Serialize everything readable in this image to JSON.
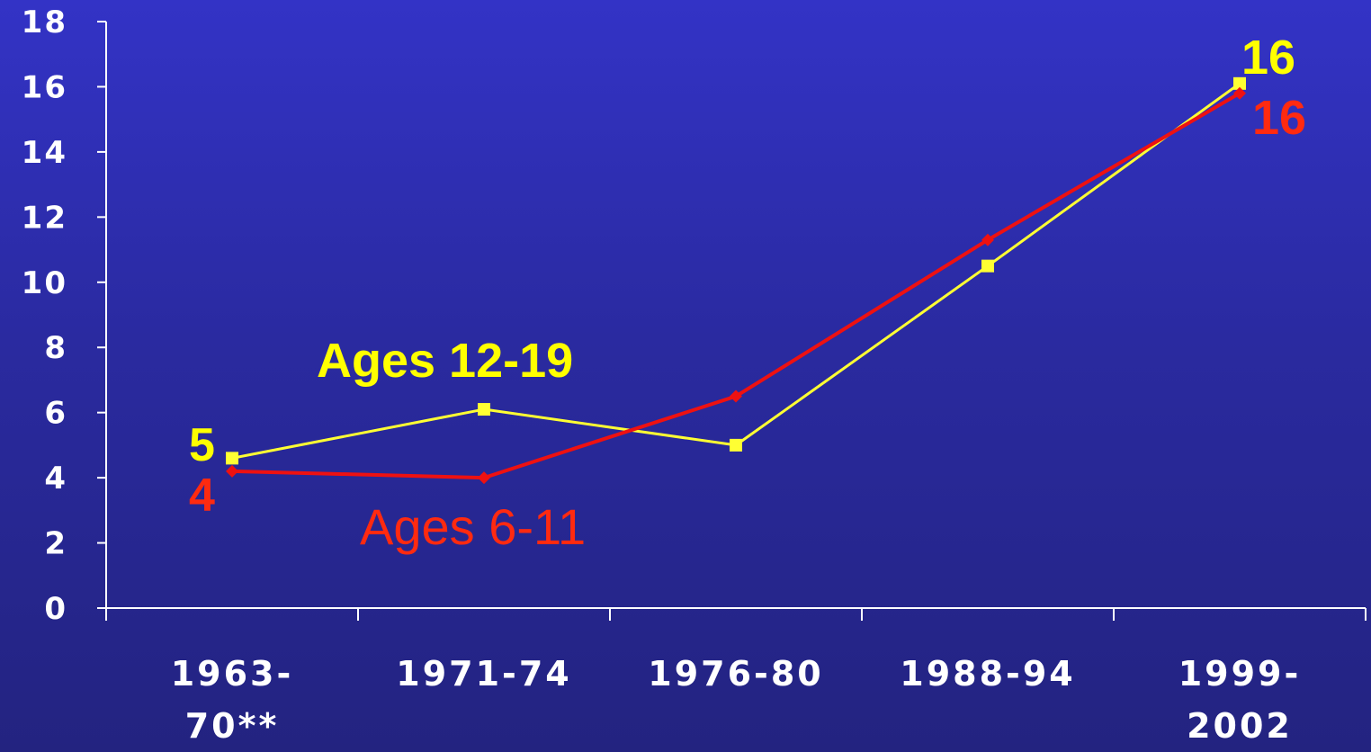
{
  "chart_data": {
    "type": "line",
    "categories": [
      "1963-70**",
      "1971-74",
      "1976-80",
      "1988-94",
      "1999-2002"
    ],
    "category_lines": [
      [
        "1963-",
        "70**"
      ],
      [
        "1971-74"
      ],
      [
        "1976-80"
      ],
      [
        "1988-94"
      ],
      [
        "1999-",
        "2002"
      ]
    ],
    "ylim": [
      0,
      18
    ],
    "yticks": [
      "0",
      "2",
      "4",
      "6",
      "8",
      "10",
      "12",
      "14",
      "16",
      "18"
    ],
    "grid": false,
    "series": [
      {
        "name": "Ages 12-19",
        "color": "#ffff33",
        "marker": "square",
        "values": [
          4.6,
          6.1,
          5.0,
          10.5,
          16.1
        ],
        "data_labels": {
          "0": "5",
          "4": "16"
        }
      },
      {
        "name": "Ages 6-11",
        "color": "#ee1111",
        "marker": "diamond",
        "values": [
          4.2,
          4.0,
          6.5,
          11.3,
          15.8
        ],
        "data_labels": {
          "0": "4",
          "4": "16"
        }
      }
    ]
  }
}
